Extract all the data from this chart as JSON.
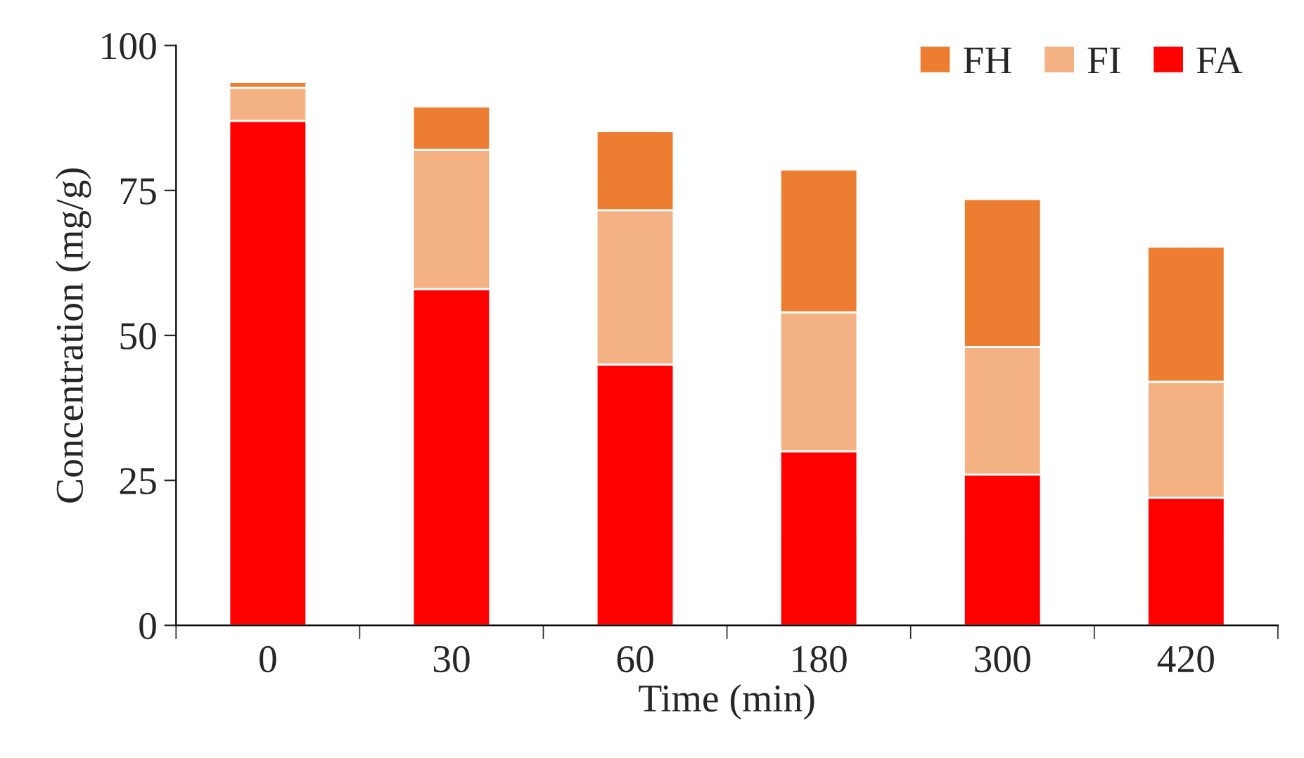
{
  "chart_data": {
    "type": "bar",
    "stacked": true,
    "xlabel": "Time (min)",
    "ylabel": "Concentration (mg/g)",
    "categories": [
      "0",
      "30",
      "60",
      "180",
      "300",
      "420"
    ],
    "series": [
      {
        "name": "FA",
        "color": "#ff0000",
        "values": [
          87,
          58,
          45,
          30,
          26,
          22
        ]
      },
      {
        "name": "FI",
        "color": "#f4b183",
        "values": [
          5.7,
          24,
          26.6,
          24,
          22,
          20
        ]
      },
      {
        "name": "FH",
        "color": "#ed7d31",
        "values": [
          1.0,
          7.5,
          13.6,
          24.6,
          25.5,
          23.3
        ]
      }
    ],
    "ylim": [
      0,
      100
    ],
    "yticks": [
      0,
      25,
      50,
      75,
      100
    ],
    "grid": false,
    "legend": "top right"
  }
}
